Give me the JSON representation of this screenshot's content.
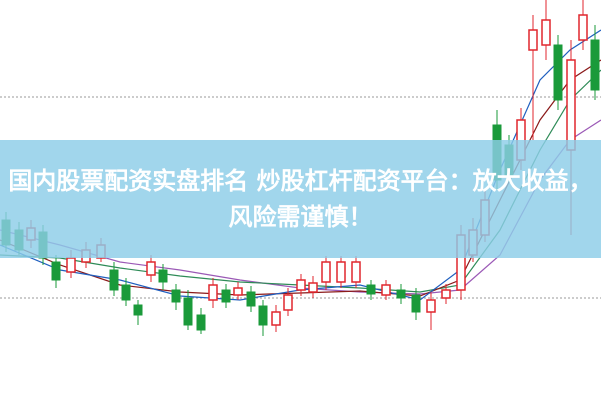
{
  "banner": {
    "title": "国内股票配资实盘排名 炒股杠杆配资平台：放大收益，风险需谨慎！"
  }
}
